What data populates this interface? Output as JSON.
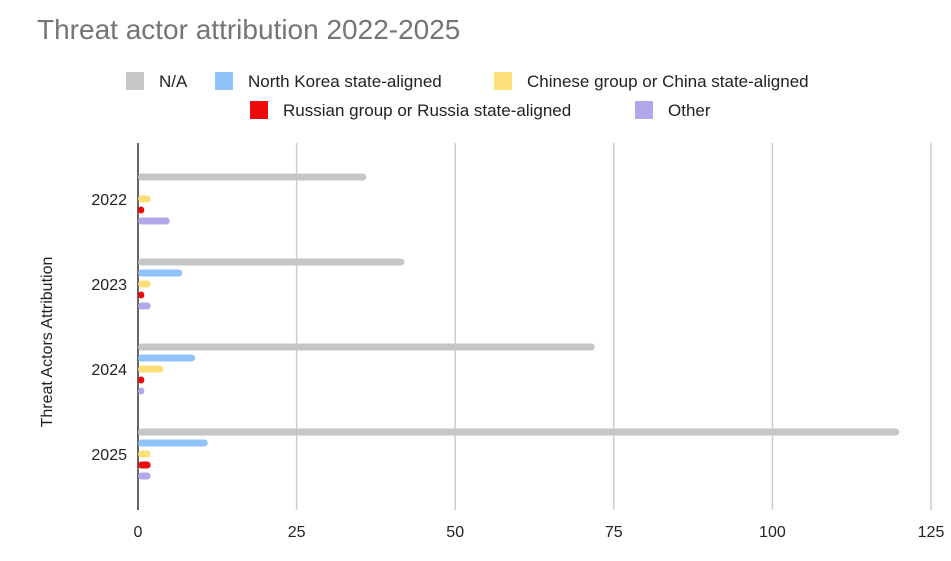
{
  "chart_data": {
    "type": "bar",
    "orientation": "horizontal",
    "title": "Threat actor attribution 2022-2025",
    "xlabel": "",
    "ylabel": "Threat Actors Attribution",
    "categories": [
      "2022",
      "2023",
      "2024",
      "2025"
    ],
    "xlim": [
      0,
      125
    ],
    "xticks": [
      "0",
      "25",
      "50",
      "75",
      "100",
      "125"
    ],
    "grid": true,
    "legend_position": "top",
    "series": [
      {
        "name": "N/A",
        "color": "#c6c6c6",
        "values": [
          36,
          42,
          72,
          120
        ]
      },
      {
        "name": "North Korea state-aligned",
        "color": "#8fc3fa",
        "values": [
          0,
          7,
          9,
          11
        ]
      },
      {
        "name": "Chinese group or China state-aligned",
        "color": "#fddf7a",
        "values": [
          2,
          2,
          4,
          2
        ]
      },
      {
        "name": "Russian group or Russia state-aligned",
        "color": "#ee0a0a",
        "values": [
          1,
          1,
          1,
          2
        ]
      },
      {
        "name": "Other",
        "color": "#b4a7e9",
        "values": [
          5,
          2,
          1,
          2
        ]
      }
    ]
  }
}
